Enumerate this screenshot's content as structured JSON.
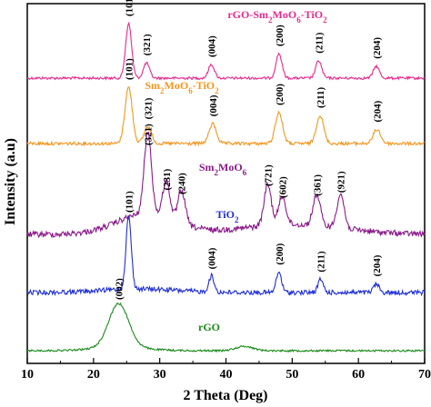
{
  "chart_data": {
    "type": "line",
    "xlabel": "2 Theta (Deg)",
    "ylabel": "Intensity (a.u)",
    "xlim": [
      10,
      70
    ],
    "xticks": [
      "10",
      "20",
      "30",
      "40",
      "50",
      "60",
      "70"
    ],
    "y_ticks_shown": false,
    "grid": false,
    "series": [
      {
        "name_parts": [
          [
            "rGO-Sm",
            ""
          ],
          [
            "2",
            "sub"
          ],
          [
            "MoO",
            ""
          ],
          [
            "6",
            "sub"
          ],
          [
            "-TiO",
            ""
          ],
          [
            "2",
            "sub"
          ]
        ],
        "color": "#e8288c",
        "peaks": [
          {
            "x": 25.3,
            "label": "(101)",
            "rel": 1.0
          },
          {
            "x": 28.0,
            "label": "(321)",
            "rel": 0.28
          },
          {
            "x": 37.8,
            "label": "(004)",
            "rel": 0.25
          },
          {
            "x": 48.0,
            "label": "(200)",
            "rel": 0.45
          },
          {
            "x": 54.0,
            "label": "(211)",
            "rel": 0.32
          },
          {
            "x": 62.7,
            "label": "(204)",
            "rel": 0.22
          }
        ]
      },
      {
        "name_parts": [
          [
            "Sm",
            ""
          ],
          [
            "2",
            "sub"
          ],
          [
            "MoO",
            ""
          ],
          [
            "6",
            "sub"
          ],
          [
            "-TiO",
            ""
          ],
          [
            "2",
            "sub"
          ]
        ],
        "color": "#f7941d",
        "peaks": [
          {
            "x": 25.3,
            "label": "(101)",
            "rel": 1.0
          },
          {
            "x": 28.2,
            "label": "(321)",
            "rel": 0.3
          },
          {
            "x": 38.0,
            "label": "(004)",
            "rel": 0.35
          },
          {
            "x": 48.0,
            "label": "(200)",
            "rel": 0.55
          },
          {
            "x": 54.2,
            "label": "(211)",
            "rel": 0.5
          },
          {
            "x": 62.8,
            "label": "(204)",
            "rel": 0.25
          }
        ]
      },
      {
        "name_parts": [
          [
            "Sm",
            ""
          ],
          [
            "2",
            "sub"
          ],
          [
            "MoO",
            ""
          ],
          [
            "6",
            "sub"
          ]
        ],
        "color": "#8b1a8b",
        "peaks": [
          {
            "x": 28.2,
            "label": "(321)",
            "rel": 1.0
          },
          {
            "x": 31.0,
            "label": "(231)",
            "rel": 0.45
          },
          {
            "x": 33.3,
            "label": "(240)",
            "rel": 0.4
          },
          {
            "x": 46.3,
            "label": "(721)",
            "rel": 0.5
          },
          {
            "x": 48.5,
            "label": "(602)",
            "rel": 0.35
          },
          {
            "x": 53.7,
            "label": "(361)",
            "rel": 0.38
          },
          {
            "x": 57.3,
            "label": "(921)",
            "rel": 0.42
          }
        ]
      },
      {
        "name_parts": [
          [
            "TiO",
            ""
          ],
          [
            "2",
            "sub"
          ]
        ],
        "color": "#1f2fd6",
        "peaks": [
          {
            "x": 25.3,
            "label": "(101)",
            "rel": 1.0
          },
          {
            "x": 37.8,
            "label": "(004)",
            "rel": 0.22
          },
          {
            "x": 48.0,
            "label": "(200)",
            "rel": 0.28
          },
          {
            "x": 54.3,
            "label": "(211)",
            "rel": 0.18
          },
          {
            "x": 62.7,
            "label": "(204)",
            "rel": 0.12
          }
        ]
      },
      {
        "name_parts": [
          [
            "rGO",
            ""
          ]
        ],
        "color": "#1a8a1a",
        "peaks": [
          {
            "x": 23.8,
            "label": "(002)",
            "rel": 1.0
          },
          {
            "x": 42.8,
            "label": "",
            "rel": 0.1
          }
        ]
      }
    ]
  }
}
